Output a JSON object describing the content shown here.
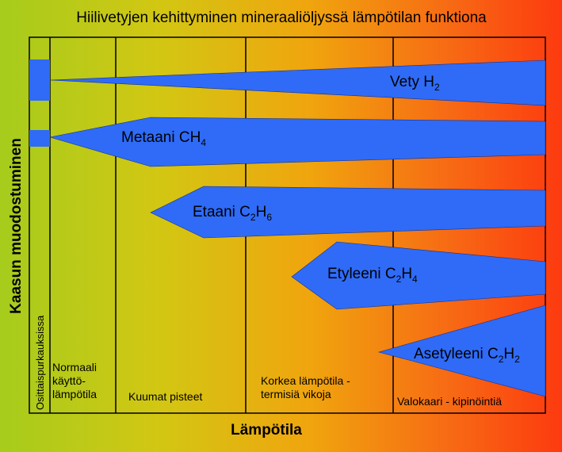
{
  "title": "Hiilivetyjen kehittyminen mineraaliöljyssä lämpötilan funktiona",
  "y_axis_label": "Kaasun muodostuminen",
  "x_axis_label": "Lämpötila",
  "partial_discharge_label": "Osittaispurkauksissa",
  "zones": [
    {
      "lines": [
        "Normaali",
        "käyttö-",
        "lämpötila"
      ]
    },
    {
      "lines": [
        "Kuumat pisteet"
      ]
    },
    {
      "lines": [
        "Korkea lämpötila -",
        "termisiä vikoja"
      ]
    },
    {
      "lines": [
        "Valokaari - kipinöintiä"
      ]
    }
  ],
  "gases": [
    {
      "name": "Vety",
      "formula": [
        [
          "H",
          ""
        ],
        [
          "",
          "2"
        ]
      ]
    },
    {
      "name": "Metaani",
      "formula": [
        [
          "C",
          ""
        ],
        [
          "H",
          "4"
        ]
      ]
    },
    {
      "name": "Etaani",
      "formula": [
        [
          "C",
          "2"
        ],
        [
          "H",
          "6"
        ]
      ]
    },
    {
      "name": "Etyleeni",
      "formula": [
        [
          "C",
          "2"
        ],
        [
          "H",
          "4"
        ]
      ]
    },
    {
      "name": "Asetyleeni",
      "formula": [
        [
          "C",
          "2"
        ],
        [
          "H",
          "2"
        ]
      ]
    }
  ],
  "colors": {
    "shape_fill": "#2f6bf6",
    "line": "#000000",
    "text": "#000000"
  }
}
